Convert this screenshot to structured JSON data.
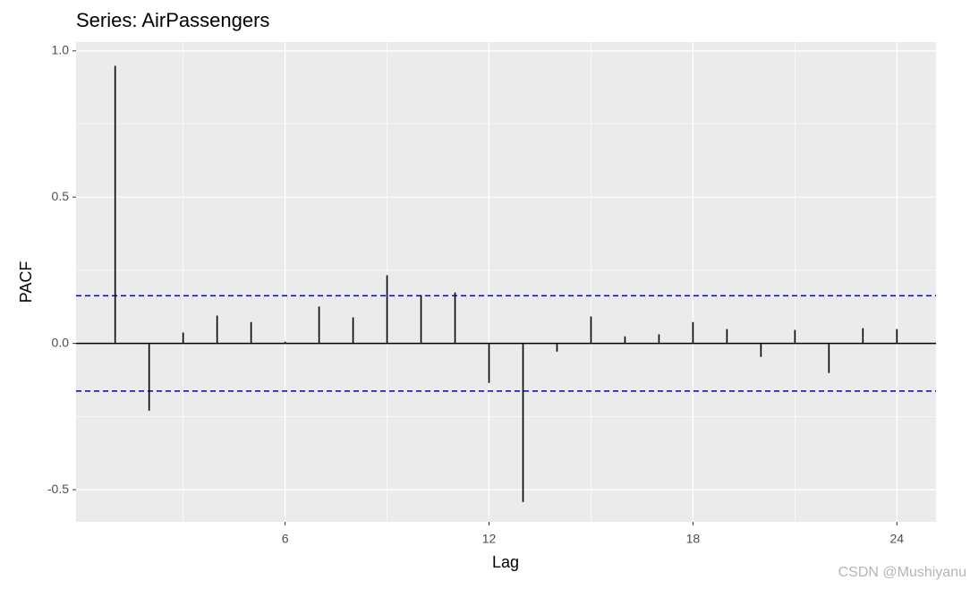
{
  "chart_data": {
    "type": "pacf",
    "title": "Series: AirPassengers",
    "x_label": "Lag",
    "y_label": "PACF",
    "x": [
      1,
      2,
      3,
      4,
      5,
      6,
      7,
      8,
      9,
      10,
      11,
      12,
      13,
      14,
      15,
      16,
      17,
      18,
      19,
      20,
      21,
      22,
      23,
      24
    ],
    "values": [
      0.949,
      -0.23,
      0.037,
      0.095,
      0.073,
      0.006,
      0.126,
      0.089,
      0.233,
      0.165,
      0.174,
      -0.135,
      -0.542,
      -0.028,
      0.092,
      0.024,
      0.031,
      0.073,
      0.049,
      -0.046,
      0.046,
      -0.101,
      0.052,
      0.049
    ],
    "ci": 0.163,
    "color": "#000000",
    "ci_color": "#0000cc",
    "xlim": [
      -0.15,
      25.15
    ],
    "xticks": [
      6,
      12,
      18,
      24
    ],
    "ylim": [
      -0.61,
      1.03
    ],
    "yticks": [
      {
        "value": -0.5,
        "label": "-0.5"
      },
      {
        "value": 0,
        "label": "0.0"
      },
      {
        "value": 0.5,
        "label": "0.5"
      },
      {
        "value": 1,
        "label": "1.0"
      }
    ],
    "grid": true,
    "watermark": "CSDN @Mushiyanu"
  }
}
